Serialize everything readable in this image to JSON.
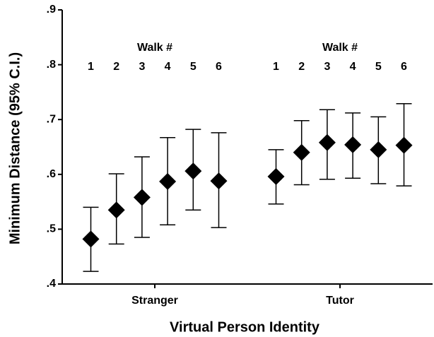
{
  "chart_data": {
    "type": "errorbar",
    "ylabel": "Minimum Distance (95% C.I.)",
    "xlabel": "Virtual Person Identity",
    "group_label": "Walk #",
    "walks": [
      "1",
      "2",
      "3",
      "4",
      "5",
      "6"
    ],
    "ylim": [
      0.4,
      0.9
    ],
    "yticks": [
      {
        "value": 0.4,
        "label": ".4"
      },
      {
        "value": 0.5,
        "label": ".5"
      },
      {
        "value": 0.6,
        "label": ".6"
      },
      {
        "value": 0.7,
        "label": ".7"
      },
      {
        "value": 0.8,
        "label": ".8"
      },
      {
        "value": 0.9,
        "label": ".9"
      }
    ],
    "color": "#000000",
    "series": [
      {
        "name": "Stranger",
        "values": [
          0.482,
          0.535,
          0.558,
          0.587,
          0.606,
          0.588
        ],
        "lower": [
          0.423,
          0.473,
          0.485,
          0.508,
          0.535,
          0.503
        ],
        "upper": [
          0.54,
          0.601,
          0.632,
          0.667,
          0.682,
          0.676
        ]
      },
      {
        "name": "Tutor",
        "values": [
          0.596,
          0.64,
          0.658,
          0.654,
          0.645,
          0.653
        ],
        "lower": [
          0.546,
          0.581,
          0.591,
          0.593,
          0.583,
          0.579
        ],
        "upper": [
          0.645,
          0.698,
          0.718,
          0.712,
          0.705,
          0.729
        ]
      }
    ]
  }
}
